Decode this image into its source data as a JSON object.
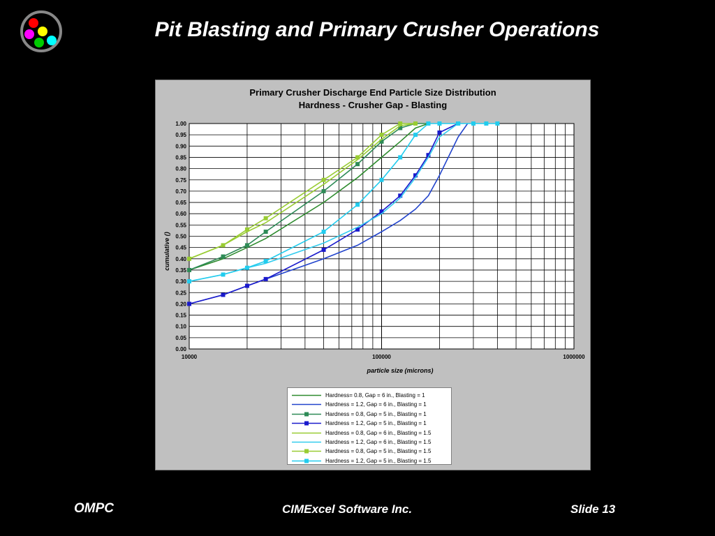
{
  "slide": {
    "title": "Pit Blasting and Primary Crusher Operations",
    "footer_left": "OMPC",
    "footer_center": "CIMExcel Software Inc.",
    "footer_right": "Slide 13",
    "logo_colors": [
      "#ff0000",
      "#ffff00",
      "#ff00ff",
      "#00cc00",
      "#00ffff"
    ]
  },
  "chart_data": {
    "type": "line",
    "title": "Primary Crusher Discharge End Particle Size Distribution",
    "subtitle": "Hardness - Crusher Gap - Blasting",
    "xlabel": "particle size (microns)",
    "ylabel": "cumulative ()",
    "x_scale": "log",
    "xlim": [
      10000,
      1000000
    ],
    "ylim": [
      0,
      1
    ],
    "x_tick_labels": [
      "10000",
      "100000",
      "1000000"
    ],
    "y_ticks": [
      0.0,
      0.05,
      0.1,
      0.15,
      0.2,
      0.25,
      0.3,
      0.35,
      0.4,
      0.45,
      0.5,
      0.55,
      0.6,
      0.65,
      0.7,
      0.75,
      0.8,
      0.85,
      0.9,
      0.95,
      1.0
    ],
    "grid": true,
    "legend_position": "bottom",
    "series": [
      {
        "name": "Hardness= 0.8, Gap = 6 in., Blasting = 1",
        "color": "#2e8b2e",
        "marker": "none",
        "x": [
          10000,
          15000,
          20000,
          25000,
          50000,
          75000,
          100000,
          125000,
          150000,
          175000
        ],
        "y": [
          0.35,
          0.4,
          0.45,
          0.49,
          0.65,
          0.76,
          0.85,
          0.92,
          0.98,
          1.0
        ]
      },
      {
        "name": "Hardness = 1.2, Gap = 6 in., Blasting = 1",
        "color": "#2244cc",
        "marker": "none",
        "x": [
          10000,
          15000,
          20000,
          25000,
          50000,
          75000,
          100000,
          125000,
          150000,
          175000,
          200000,
          250000,
          280000
        ],
        "y": [
          0.2,
          0.24,
          0.28,
          0.31,
          0.4,
          0.46,
          0.52,
          0.57,
          0.62,
          0.68,
          0.77,
          0.94,
          1.0
        ]
      },
      {
        "name": "Hardness = 0.8, Gap = 5 in., Blasting = 1",
        "color": "#2e8b57",
        "marker": "square",
        "x": [
          10000,
          15000,
          20000,
          25000,
          50000,
          75000,
          100000,
          125000,
          150000,
          175000
        ],
        "y": [
          0.35,
          0.41,
          0.46,
          0.52,
          0.7,
          0.82,
          0.92,
          0.98,
          1.0,
          1.0
        ]
      },
      {
        "name": "Hardness = 1.2, Gap = 5 in., Blasting = 1",
        "color": "#1a1acc",
        "marker": "square",
        "x": [
          10000,
          15000,
          20000,
          25000,
          50000,
          75000,
          100000,
          125000,
          150000,
          175000,
          200000,
          250000
        ],
        "y": [
          0.2,
          0.24,
          0.28,
          0.31,
          0.44,
          0.53,
          0.61,
          0.68,
          0.77,
          0.86,
          0.96,
          1.0
        ]
      },
      {
        "name": "Hardness = 0.8, Gap = 6 in., Blasting = 1.5",
        "color": "#99cc33",
        "marker": "none",
        "x": [
          10000,
          15000,
          20000,
          25000,
          50000,
          75000,
          100000,
          125000,
          150000
        ],
        "y": [
          0.4,
          0.46,
          0.52,
          0.56,
          0.73,
          0.84,
          0.93,
          0.99,
          1.0
        ]
      },
      {
        "name": "Hardness = 1.2, Gap = 6 in., Blasting = 1.5",
        "color": "#33ccee",
        "marker": "none",
        "x": [
          10000,
          15000,
          20000,
          25000,
          50000,
          75000,
          100000,
          125000,
          150000,
          175000,
          200000,
          250000
        ],
        "y": [
          0.3,
          0.33,
          0.36,
          0.38,
          0.47,
          0.54,
          0.6,
          0.67,
          0.76,
          0.85,
          0.94,
          1.0
        ]
      },
      {
        "name": "Hardness = 0.8, Gap = 5 in., Blasting = 1.5",
        "color": "#99cc33",
        "marker": "square",
        "x": [
          10000,
          15000,
          20000,
          25000,
          50000,
          75000,
          100000,
          125000,
          150000
        ],
        "y": [
          0.4,
          0.46,
          0.53,
          0.58,
          0.75,
          0.85,
          0.95,
          1.0,
          1.0
        ]
      },
      {
        "name": "Hardness = 1.2, Gap = 5 in., Blasting = 1.5",
        "color": "#22ccee",
        "marker": "square",
        "x": [
          10000,
          15000,
          20000,
          25000,
          50000,
          75000,
          100000,
          125000,
          150000,
          175000,
          200000,
          250000,
          300000,
          350000,
          400000
        ],
        "y": [
          0.3,
          0.33,
          0.36,
          0.39,
          0.52,
          0.64,
          0.75,
          0.85,
          0.95,
          1.0,
          1.0,
          1.0,
          1.0,
          1.0,
          1.0
        ]
      }
    ]
  }
}
